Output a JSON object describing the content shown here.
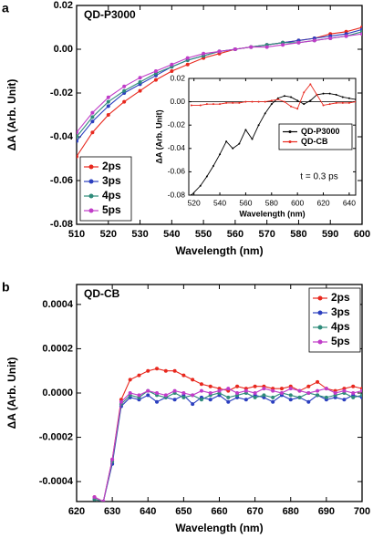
{
  "chart_data": [
    {
      "type": "line",
      "panel_label": "a",
      "title": "QD-P3000",
      "xlabel": "Wavelength (nm)",
      "ylabel": "ΔA (Arb. Unit)",
      "xlim": [
        510,
        600
      ],
      "xticks": [
        510,
        520,
        530,
        540,
        550,
        560,
        570,
        580,
        590,
        600
      ],
      "ylim": [
        -0.08,
        0.02
      ],
      "yticks": [
        -0.08,
        -0.06,
        -0.04,
        -0.02,
        {
          "value": 0,
          "label": "0.00"
        },
        0.02
      ],
      "legend": "lower left",
      "x": [
        510,
        515,
        520,
        525,
        530,
        535,
        540,
        545,
        550,
        555,
        560,
        565,
        570,
        575,
        580,
        585,
        590,
        595,
        600
      ],
      "series": [
        {
          "name": "2ps",
          "color": "#e8281e",
          "values": [
            -0.049,
            -0.038,
            -0.03,
            -0.024,
            -0.019,
            -0.014,
            -0.01,
            -0.007,
            -0.004,
            -0.002,
            0.0,
            0.001,
            0.002,
            0.003,
            0.004,
            0.005,
            0.007,
            0.008,
            0.01
          ]
        },
        {
          "name": "3ps",
          "color": "#2b3fbf",
          "values": [
            -0.042,
            -0.033,
            -0.026,
            -0.02,
            -0.016,
            -0.012,
            -0.008,
            -0.005,
            -0.003,
            -0.001,
            0.0,
            0.001,
            0.002,
            0.003,
            0.004,
            0.005,
            0.006,
            0.007,
            0.009
          ]
        },
        {
          "name": "4ps",
          "color": "#2e8b7a",
          "values": [
            -0.04,
            -0.031,
            -0.024,
            -0.019,
            -0.015,
            -0.011,
            -0.008,
            -0.005,
            -0.003,
            -0.001,
            0.0,
            0.001,
            0.002,
            0.003,
            0.003,
            0.004,
            0.005,
            0.006,
            0.008
          ]
        },
        {
          "name": "5ps",
          "color": "#c03cc8",
          "values": [
            -0.038,
            -0.029,
            -0.022,
            -0.017,
            -0.013,
            -0.01,
            -0.007,
            -0.004,
            -0.002,
            -0.001,
            0.0,
            0.001,
            0.001,
            0.002,
            0.003,
            0.004,
            0.005,
            0.006,
            0.007
          ]
        }
      ]
    },
    {
      "type": "line",
      "xlabel": "Wavelength (nm)",
      "ylabel": "ΔA (Arb. Unit)",
      "annotation": "t = 0.3 ps",
      "xlim": [
        516,
        645
      ],
      "xticks": [
        520,
        540,
        560,
        580,
        600,
        620,
        640
      ],
      "ylim": [
        -0.08,
        0.02
      ],
      "yticks": [
        -0.08,
        -0.06,
        -0.04,
        -0.02,
        {
          "value": 0,
          "label": "0.00"
        },
        0.02
      ],
      "legend": "right",
      "x": [
        518,
        525,
        530,
        535,
        540,
        545,
        550,
        555,
        560,
        565,
        570,
        575,
        580,
        585,
        590,
        595,
        600,
        605,
        610,
        615,
        620,
        625,
        630,
        635,
        640,
        645
      ],
      "series": [
        {
          "name": "QD-P3000",
          "color": "#000000",
          "values": [
            -0.08,
            -0.072,
            -0.064,
            -0.055,
            -0.045,
            -0.034,
            -0.04,
            -0.036,
            -0.024,
            -0.032,
            -0.02,
            -0.01,
            -0.002,
            0.003,
            0.005,
            0.004,
            0.001,
            -0.002,
            0.001,
            0.006,
            0.007,
            0.007,
            0.006,
            0.004,
            0.003,
            0.002
          ]
        },
        {
          "name": "QD-CB",
          "color": "#e8281e",
          "values": [
            -0.003,
            -0.003,
            -0.002,
            -0.002,
            -0.002,
            -0.001,
            -0.001,
            -0.001,
            0,
            0,
            0,
            0,
            0.001,
            0.002,
            0,
            -0.004,
            -0.006,
            0.008,
            0.015,
            0.006,
            -0.003,
            -0.002,
            -0.001,
            -0.001,
            -0.001,
            0
          ]
        }
      ]
    },
    {
      "type": "line",
      "panel_label": "b",
      "title": "QD-CB",
      "xlabel": "Wavelength (nm)",
      "ylabel": "ΔA (Arb. Unit)",
      "xlim": [
        620,
        700
      ],
      "xticks": [
        620,
        630,
        640,
        650,
        660,
        670,
        680,
        690,
        700
      ],
      "ylim": [
        -0.00049,
        0.00049
      ],
      "yticks": [
        -0.0004,
        -0.0002,
        {
          "value": 0,
          "label": "0.0000"
        },
        0.0002,
        0.0004
      ],
      "legend": "upper right",
      "x": [
        625,
        627.5,
        630,
        632.5,
        635,
        637.5,
        640,
        642.5,
        645,
        647.5,
        650,
        652.5,
        655,
        657.5,
        660,
        662.5,
        665,
        667.5,
        670,
        672.5,
        675,
        677.5,
        680,
        682.5,
        685,
        687.5,
        690,
        692.5,
        695,
        697.5,
        700
      ],
      "series": [
        {
          "name": "2ps",
          "color": "#e8281e",
          "values": [
            -0.00047,
            -0.00049,
            -0.0003,
            -3e-05,
            6e-05,
            8e-05,
            0.0001,
            0.00011,
            0.0001,
            0.0001,
            8e-05,
            6e-05,
            4e-05,
            3e-05,
            2e-05,
            1e-05,
            3e-05,
            2e-05,
            3e-05,
            3e-05,
            2e-05,
            2e-05,
            3e-05,
            1e-05,
            3e-05,
            5e-05,
            2e-05,
            1e-05,
            2e-05,
            3e-05,
            2e-05
          ]
        },
        {
          "name": "3ps",
          "color": "#2b3fbf",
          "values": [
            -0.00048,
            -0.00049,
            -0.00032,
            -6e-05,
            -2e-05,
            -3e-05,
            -1e-05,
            -4e-05,
            -2e-05,
            -3e-05,
            -1e-05,
            -5e-05,
            -2e-05,
            -3e-05,
            -1e-05,
            -4e-05,
            -2e-05,
            -3e-05,
            -1e-05,
            -2e-05,
            -4e-05,
            -1e-05,
            -3e-05,
            -2e-05,
            -4e-05,
            -1e-05,
            -3e-05,
            -2e-05,
            -3e-05,
            -1e-05,
            -2e-05
          ]
        },
        {
          "name": "4ps",
          "color": "#2e8b7a",
          "values": [
            -0.00048,
            -0.00049,
            -0.00031,
            -5e-05,
            -1e-05,
            -2e-05,
            1e-05,
            -1e-05,
            -2e-05,
            0,
            -2e-05,
            -1e-05,
            -3e-05,
            -1e-05,
            0,
            -2e-05,
            -1e-05,
            0,
            -2e-05,
            -1e-05,
            -2e-05,
            0,
            -1e-05,
            -2e-05,
            0,
            -1e-05,
            -2e-05,
            -1e-05,
            0,
            -2e-05,
            -1e-05
          ]
        },
        {
          "name": "5ps",
          "color": "#c03cc8",
          "values": [
            -0.00047,
            -0.00049,
            -0.0003,
            -4e-05,
            0,
            -1e-05,
            1e-05,
            0,
            -1e-05,
            1e-05,
            0,
            -1e-05,
            1e-05,
            0,
            1e-05,
            2e-05,
            0,
            1e-05,
            0,
            2e-05,
            1e-05,
            0,
            2e-05,
            1e-05,
            0,
            1e-05,
            2e-05,
            0,
            1e-05,
            0,
            1e-05
          ]
        }
      ]
    }
  ]
}
